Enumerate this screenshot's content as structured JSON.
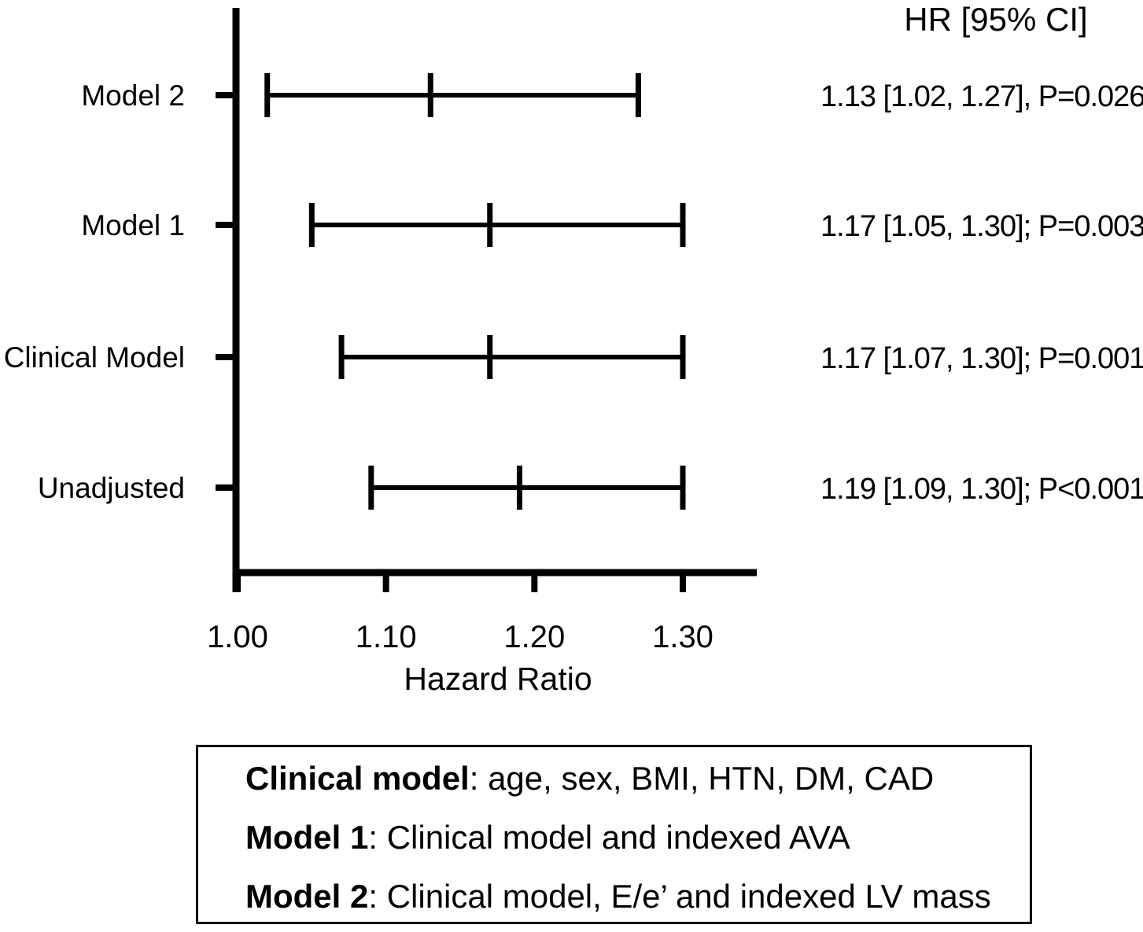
{
  "colors": {
    "foreground": "#000000",
    "background": "#ffffff"
  },
  "chart_data": {
    "type": "forest",
    "header_label": "HR [95% CI]",
    "xlabel": "Hazard Ratio",
    "x_axis": {
      "min": 1.0,
      "max": 1.35,
      "ticks": [
        1.0,
        1.1,
        1.2,
        1.3
      ],
      "tick_labels": [
        "1.00",
        "1.10",
        "1.20",
        "1.30"
      ],
      "grid": false
    },
    "rows": [
      {
        "label": "Model 2",
        "hr": 1.13,
        "ci_low": 1.02,
        "ci_high": 1.27,
        "p_value": "P=0.026",
        "annotation": "1.13 [1.02, 1.27], P=0.026"
      },
      {
        "label": "Model 1",
        "hr": 1.17,
        "ci_low": 1.05,
        "ci_high": 1.3,
        "p_value": "P=0.003",
        "annotation": "1.17 [1.05, 1.30]; P=0.003"
      },
      {
        "label": "Clinical Model",
        "hr": 1.17,
        "ci_low": 1.07,
        "ci_high": 1.3,
        "p_value": "P=0.001",
        "annotation": "1.17 [1.07, 1.30]; P=0.001"
      },
      {
        "label": "Unadjusted",
        "hr": 1.19,
        "ci_low": 1.09,
        "ci_high": 1.3,
        "p_value": "P<0.001",
        "annotation": "1.19 [1.09, 1.30]; P<0.001"
      }
    ]
  },
  "legend": {
    "items": [
      {
        "label": "Clinical model",
        "rest": ": age, sex, BMI, HTN, DM, CAD"
      },
      {
        "label": "Model 1",
        "rest": ": Clinical model and indexed AVA"
      },
      {
        "label": "Model 2",
        "rest": ": Clinical model, E/e’ and indexed LV mass"
      }
    ]
  }
}
